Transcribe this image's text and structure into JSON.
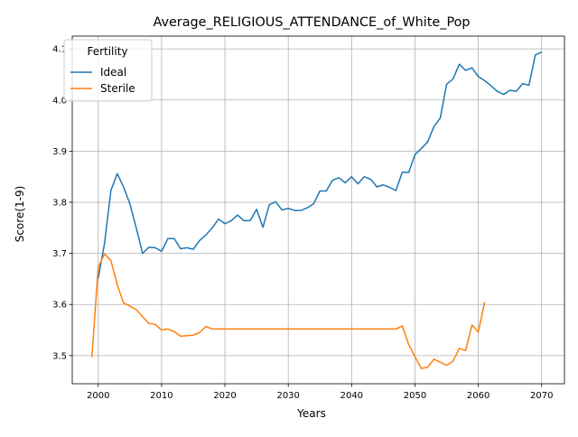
{
  "chart_data": {
    "type": "line",
    "title": "Average_RELIGIOUS_ATTENDANCE_of_White_Pop",
    "xlabel": "Years",
    "ylabel": "Score(1-9)",
    "xlim": [
      1995.9,
      2073.6
    ],
    "ylim": [
      3.445,
      4.125
    ],
    "xticks": [
      2000,
      2010,
      2020,
      2030,
      2040,
      2050,
      2060,
      2070
    ],
    "yticks": [
      3.5,
      3.6,
      3.7,
      3.8,
      3.9,
      4.0,
      4.1
    ],
    "grid": true,
    "legend": {
      "title": "Fertility",
      "placement": "top-left"
    },
    "series": [
      {
        "name": "Ideal",
        "color": "#1f77b4",
        "x": [
          2000,
          2001,
          2002,
          2003,
          2004,
          2005,
          2006,
          2007,
          2008,
          2009,
          2010,
          2011,
          2012,
          2013,
          2014,
          2015,
          2016,
          2017,
          2018,
          2019,
          2020,
          2021,
          2022,
          2023,
          2024,
          2025,
          2026,
          2027,
          2028,
          2029,
          2030,
          2031,
          2032,
          2033,
          2034,
          2035,
          2036,
          2037,
          2038,
          2039,
          2040,
          2041,
          2042,
          2043,
          2044,
          2045,
          2046,
          2047,
          2048,
          2049,
          2050,
          2051,
          2052,
          2053,
          2054,
          2055,
          2056,
          2057,
          2058,
          2059,
          2060,
          2061,
          2062,
          2063,
          2064,
          2065,
          2066,
          2067,
          2068,
          2069,
          2070
        ],
        "y": [
          3.651,
          3.72,
          3.823,
          3.856,
          3.83,
          3.797,
          3.75,
          3.7,
          3.712,
          3.711,
          3.704,
          3.729,
          3.729,
          3.709,
          3.711,
          3.708,
          3.725,
          3.736,
          3.75,
          3.767,
          3.758,
          3.764,
          3.775,
          3.764,
          3.764,
          3.786,
          3.751,
          3.795,
          3.801,
          3.785,
          3.788,
          3.784,
          3.784,
          3.789,
          3.797,
          3.822,
          3.822,
          3.843,
          3.848,
          3.838,
          3.85,
          3.836,
          3.85,
          3.845,
          3.83,
          3.834,
          3.829,
          3.823,
          3.859,
          3.858,
          3.893,
          3.905,
          3.918,
          3.948,
          3.965,
          4.031,
          4.041,
          4.07,
          4.058,
          4.063,
          4.046,
          4.038,
          4.028,
          4.017,
          4.011,
          4.019,
          4.017,
          4.032,
          4.029,
          4.088,
          4.094
        ]
      },
      {
        "name": "Sterile",
        "color": "#ff7f0e",
        "x": [
          1999,
          2000,
          2001,
          2002,
          2003,
          2004,
          2005,
          2006,
          2007,
          2008,
          2009,
          2010,
          2011,
          2012,
          2013,
          2014,
          2015,
          2016,
          2017,
          2018,
          2019,
          2020,
          2021,
          2022,
          2023,
          2024,
          2025,
          2026,
          2027,
          2028,
          2029,
          2030,
          2031,
          2032,
          2033,
          2034,
          2035,
          2036,
          2037,
          2038,
          2039,
          2040,
          2041,
          2042,
          2043,
          2044,
          2045,
          2046,
          2047,
          2048,
          2049,
          2050,
          2051,
          2052,
          2053,
          2054,
          2055,
          2056,
          2057,
          2058,
          2059,
          2060,
          2061
        ],
        "y": [
          3.497,
          3.673,
          3.699,
          3.686,
          3.639,
          3.603,
          3.597,
          3.59,
          3.576,
          3.563,
          3.561,
          3.55,
          3.552,
          3.547,
          3.538,
          3.539,
          3.54,
          3.545,
          3.557,
          3.552,
          3.552,
          3.552,
          3.552,
          3.552,
          3.552,
          3.552,
          3.552,
          3.552,
          3.552,
          3.552,
          3.552,
          3.552,
          3.552,
          3.552,
          3.552,
          3.552,
          3.552,
          3.552,
          3.552,
          3.552,
          3.552,
          3.552,
          3.552,
          3.552,
          3.552,
          3.552,
          3.552,
          3.552,
          3.552,
          3.558,
          3.522,
          3.498,
          3.475,
          3.477,
          3.493,
          3.487,
          3.481,
          3.489,
          3.514,
          3.51,
          3.56,
          3.546,
          3.605
        ]
      }
    ]
  }
}
